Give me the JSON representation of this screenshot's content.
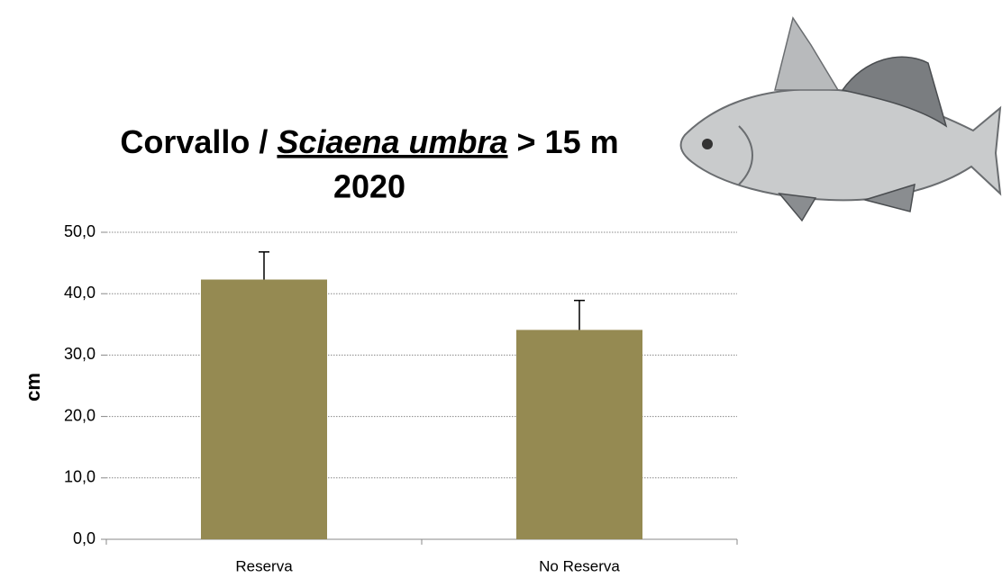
{
  "chart_data": {
    "type": "bar",
    "title_segments": [
      "Corvallo / ",
      "Sciaena umbra",
      " > 15 m"
    ],
    "subtitle": "2020",
    "ylabel": "cm",
    "categories": [
      "Reserva",
      "No Reserva"
    ],
    "values": [
      42.3,
      34.1
    ],
    "errors": [
      4.5,
      4.8
    ],
    "color": "#958a52",
    "ylim": [
      0,
      50
    ],
    "yticks": [
      {
        "value": 0,
        "label": "0,0"
      },
      {
        "value": 10,
        "label": "10,0"
      },
      {
        "value": 20,
        "label": "20,0"
      },
      {
        "value": 30,
        "label": "30,0"
      },
      {
        "value": 40,
        "label": "40,0"
      },
      {
        "value": 50,
        "label": "50,0"
      }
    ],
    "grid": true
  }
}
